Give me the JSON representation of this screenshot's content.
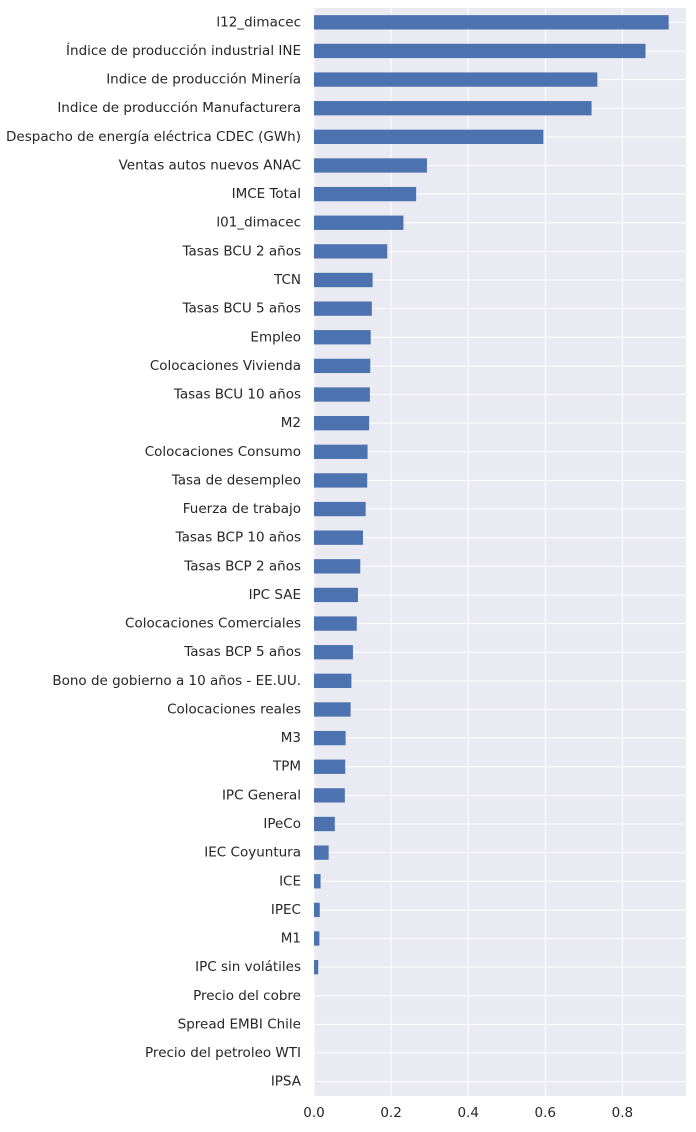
{
  "chart_data": {
    "type": "bar",
    "orientation": "horizontal",
    "title": "",
    "xlabel": "",
    "ylabel": "",
    "xlim": [
      0,
      0.965
    ],
    "xticks": [
      0.0,
      0.2,
      0.4,
      0.6,
      0.8
    ],
    "xtick_labels": [
      "0.0",
      "0.2",
      "0.4",
      "0.6",
      "0.8"
    ],
    "grid": true,
    "legend": "none",
    "colors": {
      "bar": "#4c72b0",
      "background": "#eaeaf2",
      "grid": "#ffffff"
    },
    "categories": [
      "l12_dimacec",
      "Índice de producción industrial INE",
      "Indice de producción Minería",
      "Indice de producción Manufacturera",
      "Despacho de energía eléctrica CDEC (GWh)",
      "Ventas autos nuevos ANAC",
      "IMCE Total",
      "l01_dimacec",
      "Tasas BCU 2 años",
      "TCN",
      "Tasas BCU 5 años",
      "Empleo",
      "Colocaciones Vivienda",
      "Tasas BCU 10 años",
      "M2",
      "Colocaciones Consumo",
      "Tasa de desempleo",
      "Fuerza de trabajo",
      "Tasas BCP 10 años",
      "Tasas BCP 2 años",
      "IPC SAE",
      "Colocaciones Comerciales",
      "Tasas BCP 5 años",
      "Bono de gobierno a 10 años - EE.UU.",
      "Colocaciones reales",
      "M3",
      "TPM",
      "IPC General",
      "IPeCo",
      "IEC Coyuntura",
      "ICE",
      "IPEC",
      "M1",
      "IPC sin volátiles",
      "Precio del cobre",
      "Spread EMBI Chile",
      "Precio del petroleo WTI",
      "IPSA"
    ],
    "values": [
      0.92,
      0.86,
      0.735,
      0.72,
      0.595,
      0.293,
      0.265,
      0.232,
      0.19,
      0.152,
      0.15,
      0.147,
      0.146,
      0.145,
      0.143,
      0.139,
      0.138,
      0.134,
      0.127,
      0.12,
      0.114,
      0.111,
      0.101,
      0.097,
      0.095,
      0.082,
      0.081,
      0.08,
      0.054,
      0.038,
      0.017,
      0.015,
      0.014,
      0.011,
      0.0,
      0.0,
      0.0,
      0.0
    ]
  }
}
